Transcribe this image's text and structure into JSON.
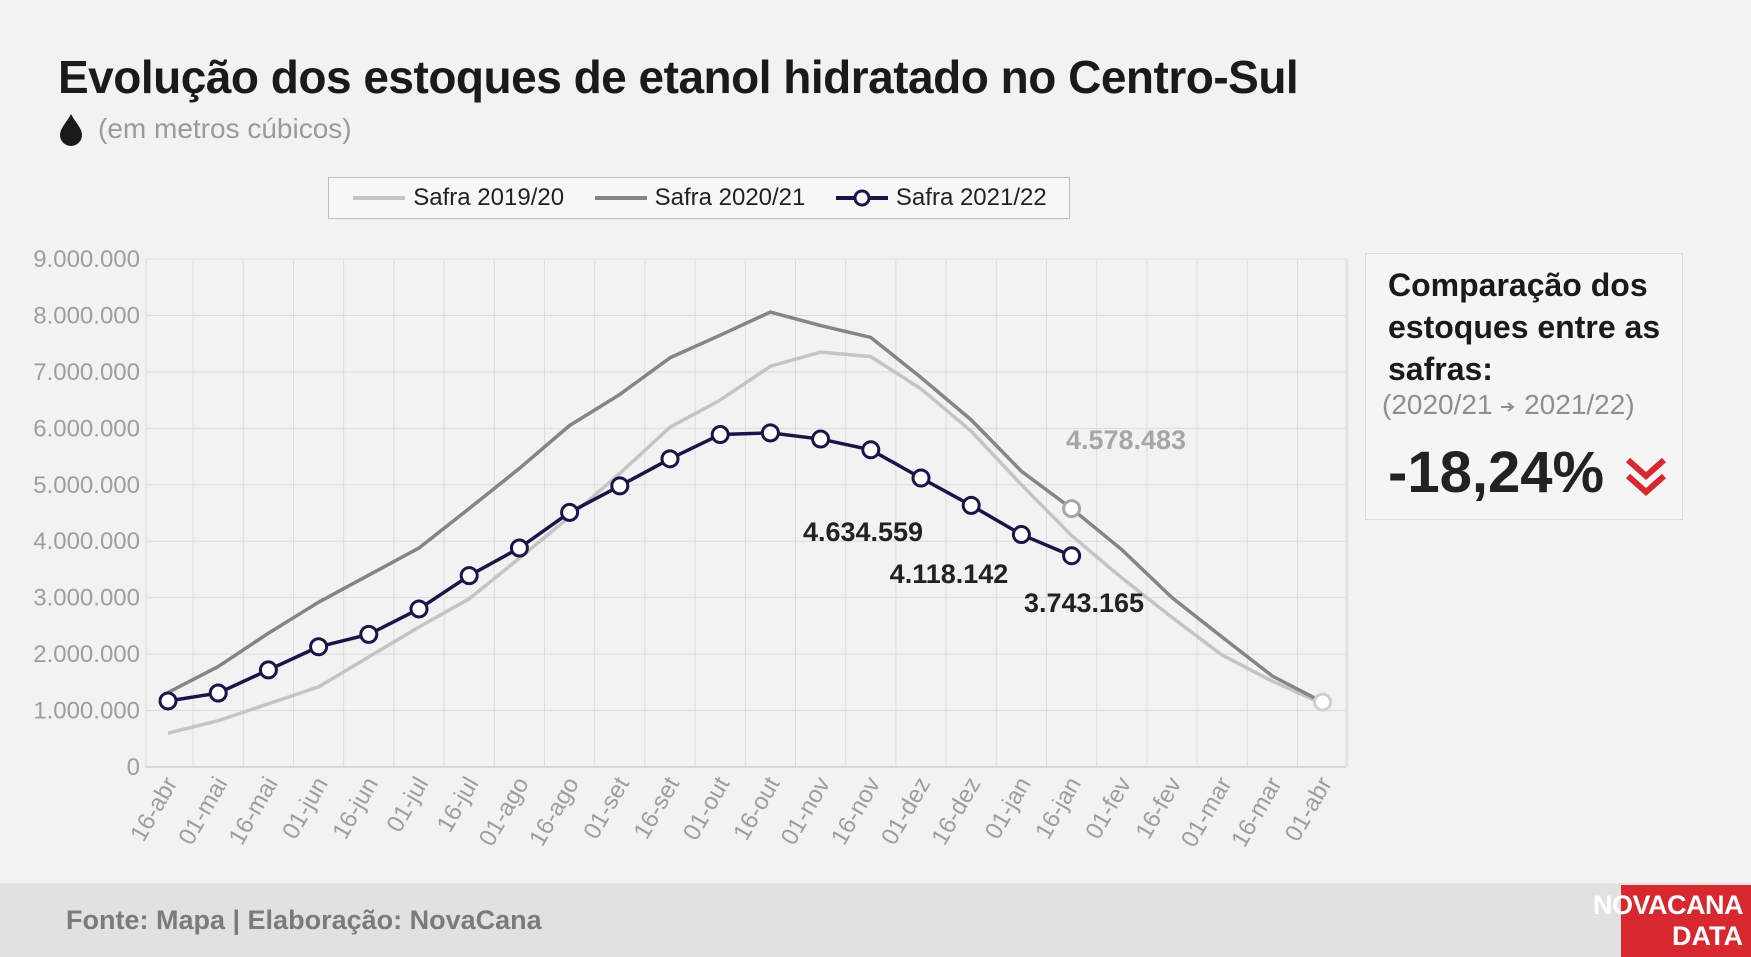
{
  "title": "Evolução dos estoques de etanol hidratado no Centro-Sul",
  "subtitle": "(em metros cúbicos)",
  "icon": "water-drop-icon",
  "source": "Fonte: Mapa | Elaboração: NovaCana",
  "brand": {
    "line1": "NOVACANA",
    "line2": "DATA",
    "color": "#d7282f"
  },
  "comparison": {
    "title": "Comparação dos estoques entre as safras:",
    "period_from": "(2020/21",
    "period_to": "2021/22)",
    "value": "-18,24%",
    "icon": "double-chevron-down-icon",
    "accent": "#d7282f"
  },
  "chart_data": {
    "type": "line",
    "categories": [
      "16-abr",
      "01-mai",
      "16-mai",
      "01-jun",
      "16-jun",
      "01-jul",
      "16-jul",
      "01-ago",
      "16-ago",
      "01-set",
      "16-set",
      "01-out",
      "16-out",
      "01-nov",
      "16-nov",
      "01-dez",
      "16-dez",
      "01-jan",
      "16-jan",
      "01-fev",
      "16-fev",
      "01-mar",
      "16-mar",
      "01-abr"
    ],
    "ylim": [
      0,
      9000000
    ],
    "yticks": [
      0,
      1000000,
      2000000,
      3000000,
      4000000,
      5000000,
      6000000,
      7000000,
      8000000,
      9000000
    ],
    "ytick_labels": [
      "0",
      "1.000.000",
      "2.000.000",
      "3.000.000",
      "4.000.000",
      "5.000.000",
      "6.000.000",
      "7.000.000",
      "8.000.000",
      "9.000.000"
    ],
    "grid": true,
    "legend": "top",
    "series": [
      {
        "name": "Safra 2019/20",
        "color": "#c4c4c4",
        "marker": false,
        "values": [
          600000,
          820000,
          1120000,
          1420000,
          1950000,
          2480000,
          2980000,
          3700000,
          4430000,
          5200000,
          6020000,
          6500000,
          7100000,
          7350000,
          7270000,
          6700000,
          5950000,
          5000000,
          4100000,
          3350000,
          2650000,
          1980000,
          1520000,
          1120000
        ]
      },
      {
        "name": "Safra 2020/21",
        "color": "#858585",
        "marker": false,
        "values": [
          1320000,
          1780000,
          2370000,
          2920000,
          3400000,
          3880000,
          4580000,
          5290000,
          6050000,
          6600000,
          7250000,
          7650000,
          8060000,
          7820000,
          7610000,
          6900000,
          6150000,
          5240000,
          4578483,
          3850000,
          3000000,
          2300000,
          1610000,
          1150000
        ]
      },
      {
        "name": "Safra 2021/22",
        "color": "#1a1447",
        "marker": true,
        "values": [
          1170000,
          1310000,
          1720000,
          2130000,
          2350000,
          2800000,
          3390000,
          3880000,
          4510000,
          4980000,
          5460000,
          5890000,
          5920000,
          5810000,
          5620000,
          5120000,
          4634559,
          4118142,
          3743165,
          null,
          null,
          null,
          null,
          null
        ]
      }
    ],
    "annotations": [
      {
        "text": "4.578.483",
        "color": "#a6a6a6"
      },
      {
        "text": "4.634.559",
        "color": "#222222"
      },
      {
        "text": "4.118.142",
        "color": "#222222"
      },
      {
        "text": "3.743.165",
        "color": "#222222"
      }
    ]
  }
}
